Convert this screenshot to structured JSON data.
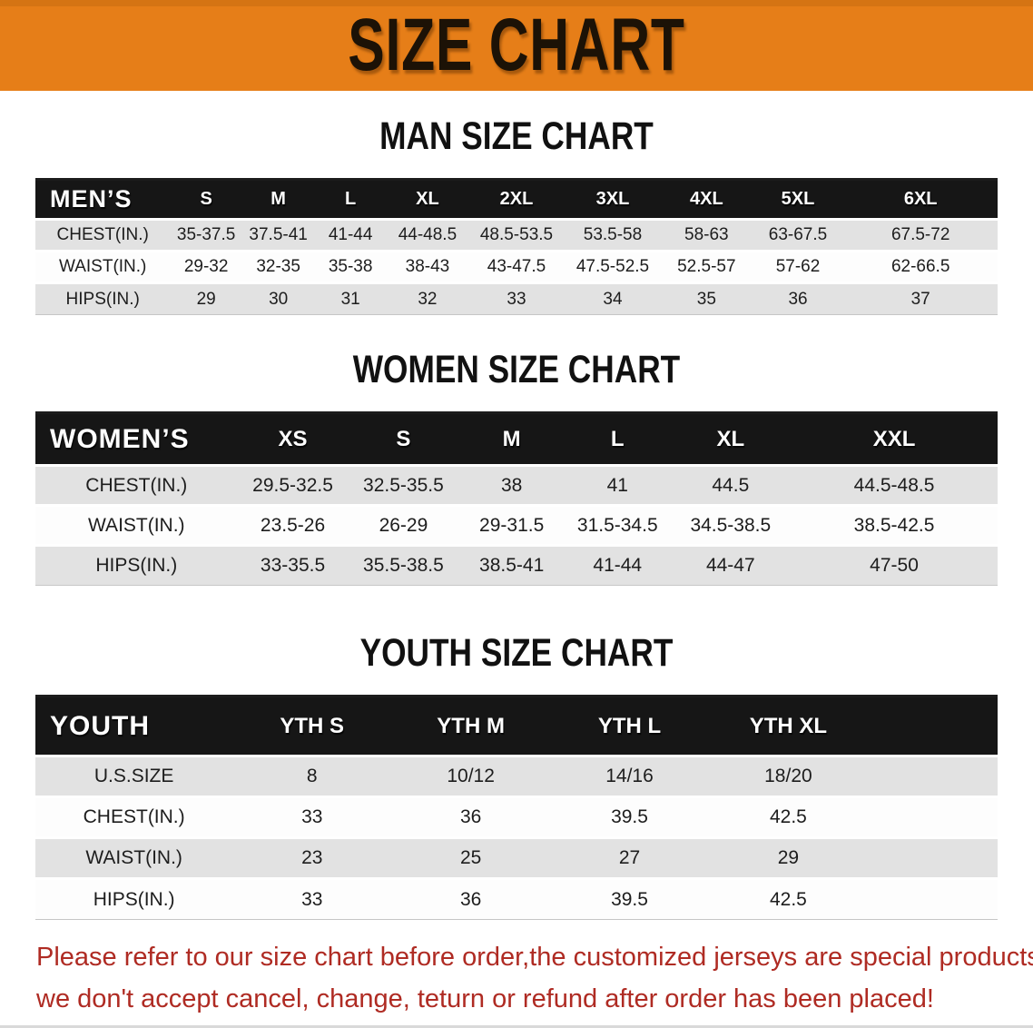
{
  "banner": {
    "title": "SIZE CHART"
  },
  "colors": {
    "banner_bg": "#E67E18",
    "table_header_bg": "#161616",
    "row_alt_bg": "#E2E2E2",
    "note_color": "#AF2B23"
  },
  "sections": [
    {
      "heading": "MAN SIZE CHART",
      "table": {
        "corner_label": "MEN’S",
        "columns": [
          "S",
          "M",
          "L",
          "XL",
          "2XL",
          "3XL",
          "4XL",
          "5XL",
          "6XL"
        ],
        "rows": [
          {
            "label": "CHEST(IN.)",
            "values": [
              "35-37.5",
              "37.5-41",
              "41-44",
              "44-48.5",
              "48.5-53.5",
              "53.5-58",
              "58-63",
              "63-67.5",
              "67.5-72"
            ]
          },
          {
            "label": "WAIST(IN.)",
            "values": [
              "29-32",
              "32-35",
              "35-38",
              "38-43",
              "43-47.5",
              "47.5-52.5",
              "52.5-57",
              "57-62",
              "62-66.5"
            ]
          },
          {
            "label": "HIPS(IN.)",
            "values": [
              "29",
              "30",
              "31",
              "32",
              "33",
              "34",
              "35",
              "36",
              "37"
            ]
          }
        ]
      }
    },
    {
      "heading": "WOMEN SIZE CHART",
      "table": {
        "corner_label": "WOMEN’S",
        "columns": [
          "XS",
          "S",
          "M",
          "L",
          "XL",
          "XXL"
        ],
        "rows": [
          {
            "label": "CHEST(IN.)",
            "values": [
              "29.5-32.5",
              "32.5-35.5",
              "38",
              "41",
              "44.5",
              "44.5-48.5"
            ]
          },
          {
            "label": "WAIST(IN.)",
            "values": [
              "23.5-26",
              "26-29",
              "29-31.5",
              "31.5-34.5",
              "34.5-38.5",
              "38.5-42.5"
            ]
          },
          {
            "label": "HIPS(IN.)",
            "values": [
              "33-35.5",
              "35.5-38.5",
              "38.5-41",
              "41-44",
              "44-47",
              "47-50"
            ]
          }
        ]
      }
    },
    {
      "heading": "YOUTH SIZE CHART",
      "table": {
        "corner_label": "YOUTH",
        "columns": [
          "YTH S",
          "YTH M",
          "YTH L",
          "YTH XL"
        ],
        "rows": [
          {
            "label": "U.S.SIZE",
            "values": [
              "8",
              "10/12",
              "14/16",
              "18/20"
            ]
          },
          {
            "label": "CHEST(IN.)",
            "values": [
              "33",
              "36",
              "39.5",
              "42.5"
            ]
          },
          {
            "label": "WAIST(IN.)",
            "values": [
              "23",
              "25",
              "27",
              "29"
            ]
          },
          {
            "label": "HIPS(IN.)",
            "values": [
              "33",
              "36",
              "39.5",
              "42.5"
            ]
          }
        ]
      }
    }
  ],
  "note": {
    "line1": "Please refer to our size chart before order,the customized jerseys are special products,",
    "line2": "we don't accept cancel, change, teturn or refund after order has been placed!"
  }
}
